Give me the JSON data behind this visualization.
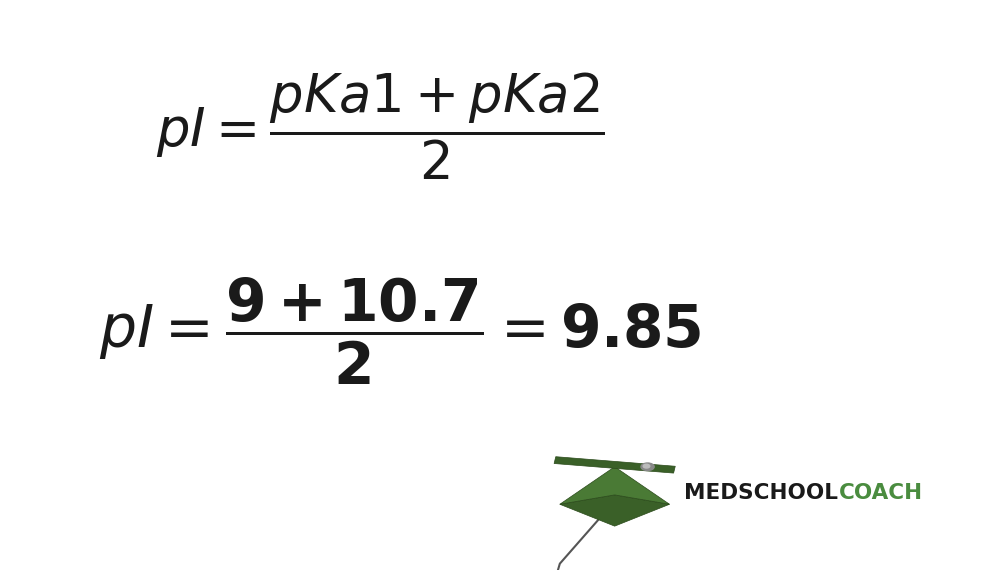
{
  "background_color": "#ffffff",
  "text_color": "#1a1a1a",
  "line1_formula": "$pI = \\dfrac{pKa1 + pKa2}{2}$",
  "line2_formula": "$pI = \\dfrac{9 + 10.7}{2} = 9.85$",
  "logo_text_bold": "MEDSCHOOL",
  "logo_text_light": "COACH",
  "logo_bold_color": "#1a1a1a",
  "logo_light_color": "#4a8c3f",
  "fig_width": 10.0,
  "fig_height": 5.71,
  "dpi": 100,
  "cap_color_top": "#4a7a35",
  "cap_color_bottom": "#3a6028",
  "cap_color_mid": "#5a9040"
}
